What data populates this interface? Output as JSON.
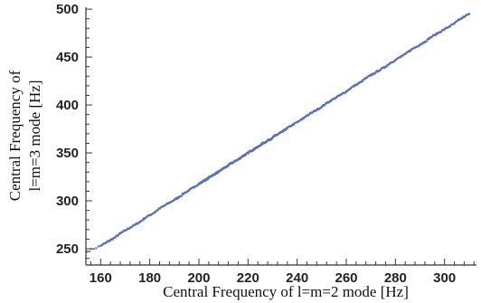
{
  "chart_data": {
    "type": "scatter",
    "title": "",
    "xlabel": "Central Frequency of l=m=2 mode [Hz]",
    "ylabel_lines": [
      "Central Frequency of",
      "l=m=3 mode [Hz]"
    ],
    "xlim": [
      154,
      313
    ],
    "ylim": [
      233,
      502
    ],
    "x_ticks": [
      160,
      180,
      200,
      220,
      240,
      260,
      280,
      300
    ],
    "y_ticks": [
      250,
      300,
      350,
      400,
      450,
      500
    ],
    "point_color": "#5a72b5",
    "grid": false,
    "series": [
      {
        "points_note": "",
        "x": [
          154.5,
          160,
          162,
          164,
          166,
          168,
          170,
          172,
          174,
          176,
          178,
          180,
          182,
          184,
          186,
          188,
          190,
          192,
          194,
          196,
          198,
          200,
          201,
          202,
          203,
          204,
          205,
          206,
          207,
          208,
          209,
          210,
          211,
          212,
          213,
          214,
          215,
          216,
          217,
          218,
          219,
          220,
          221,
          222,
          223,
          224,
          225,
          226,
          227,
          228,
          229,
          230,
          231,
          232,
          233,
          234,
          235,
          236,
          238,
          240,
          242,
          244,
          246,
          248,
          250,
          252,
          254,
          256,
          258,
          260,
          262,
          264,
          266,
          268,
          270,
          272,
          274,
          276,
          278,
          280,
          282,
          284,
          286,
          288,
          290,
          292,
          294,
          296,
          298,
          300,
          302,
          304,
          306,
          308,
          310
        ],
        "y": [
          247,
          253,
          256,
          259,
          262,
          266,
          269,
          272,
          275,
          278,
          282,
          285,
          288,
          292,
          295,
          298,
          301,
          304,
          308,
          311,
          314,
          318,
          319,
          321,
          322,
          324,
          326,
          327,
          329,
          330,
          332,
          334,
          335,
          337,
          339,
          340,
          342,
          343,
          345,
          347,
          348,
          350,
          352,
          353,
          355,
          356,
          358,
          360,
          361,
          363,
          364,
          366,
          368,
          369,
          371,
          372,
          374,
          376,
          379,
          382,
          385,
          389,
          392,
          395,
          398,
          402,
          405,
          408,
          411,
          414,
          418,
          421,
          424,
          428,
          431,
          434,
          437,
          440,
          444,
          447,
          450,
          453,
          457,
          460,
          463,
          466,
          470,
          473,
          476,
          479,
          482,
          485,
          489,
          492,
          495
        ]
      }
    ]
  }
}
